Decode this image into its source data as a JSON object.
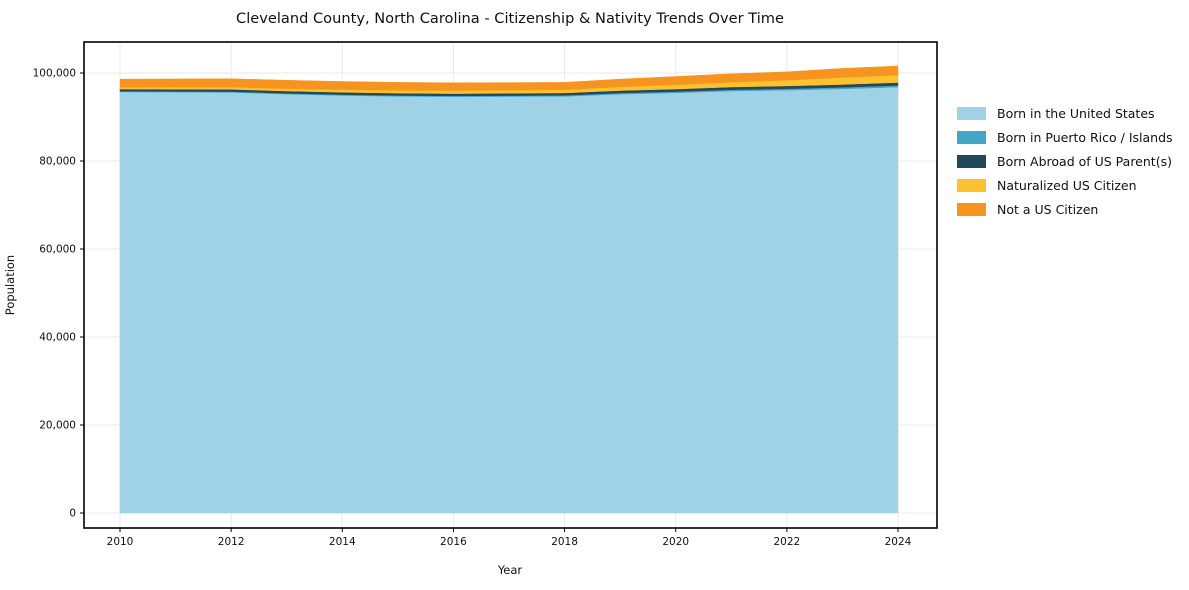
{
  "figure": {
    "title": "Cleveland County, North Carolina - Citizenship & Nativity Trends Over Time",
    "xlabel": "Year",
    "ylabel": "Population"
  },
  "chart_data": {
    "type": "area",
    "stacked": true,
    "title": "Cleveland County, North Carolina - Citizenship & Nativity Trends Over Time",
    "xlabel": "Year",
    "ylabel": "Population",
    "grid": true,
    "legend_position": "right-outside",
    "x": [
      2010,
      2011,
      2012,
      2013,
      2014,
      2015,
      2016,
      2017,
      2018,
      2019,
      2020,
      2021,
      2022,
      2023,
      2024
    ],
    "series": [
      {
        "name": "Born in the United States",
        "color": "#9fd1e7",
        "values": [
          95700,
          95650,
          95600,
          95200,
          94900,
          94700,
          94600,
          94650,
          94700,
          95200,
          95500,
          95900,
          96100,
          96400,
          96800
        ]
      },
      {
        "name": "Born in Puerto Rico / Islands",
        "color": "#44a5c6",
        "values": [
          150,
          160,
          170,
          180,
          190,
          200,
          210,
          220,
          230,
          250,
          270,
          300,
          320,
          350,
          380
        ]
      },
      {
        "name": "Born Abroad of US Parent(s)",
        "color": "#23485b",
        "values": [
          500,
          510,
          520,
          520,
          530,
          520,
          510,
          520,
          540,
          560,
          580,
          620,
          640,
          650,
          660
        ]
      },
      {
        "name": "Naturalized US Citizen",
        "color": "#fdc132",
        "values": [
          450,
          480,
          500,
          550,
          600,
          650,
          700,
          720,
          750,
          850,
          1000,
          1100,
          1300,
          1600,
          1700
        ]
      },
      {
        "name": "Not a US Citizen",
        "color": "#f7941f",
        "values": [
          1800,
          1850,
          1900,
          1900,
          1850,
          1800,
          1750,
          1700,
          1650,
          1750,
          1850,
          1900,
          1900,
          2050,
          2050
        ]
      }
    ],
    "xlim": [
      2009.352,
      2024.702
    ],
    "ylim": [
      -3409,
      107045
    ],
    "x_ticks": [
      2010,
      2012,
      2014,
      2016,
      2018,
      2020,
      2022,
      2024
    ],
    "x_tick_labels": [
      "2010",
      "2012",
      "2014",
      "2016",
      "2018",
      "2020",
      "2022",
      "2024"
    ],
    "y_ticks": [
      0,
      20000,
      40000,
      60000,
      80000,
      100000
    ],
    "y_tick_labels": [
      "0",
      "20,000",
      "40,000",
      "60,000",
      "80,000",
      "100,000"
    ],
    "colors": {
      "grid": "#e9e9e9",
      "spine": "#000000",
      "text": "#111111"
    }
  }
}
